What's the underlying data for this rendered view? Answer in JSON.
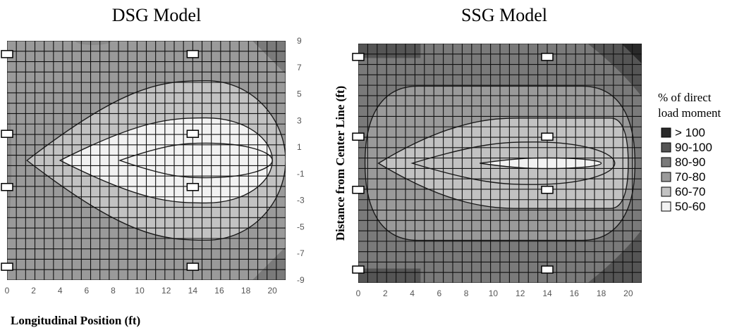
{
  "chart_data": {
    "legend_title": [
      "% of direct",
      "load moment"
    ],
    "legend": [
      {
        "label": "> 100",
        "color": "#2a2a2a"
      },
      {
        "label": "90-100",
        "color": "#555555"
      },
      {
        "label": "80-90",
        "color": "#7a7a7a"
      },
      {
        "label": "70-80",
        "color": "#9a9a9a"
      },
      {
        "label": "60-70",
        "color": "#c2c2c2"
      },
      {
        "label": "50-60",
        "color": "#f2f2f2"
      }
    ],
    "panels": [
      {
        "type": "heatmap",
        "title": "DSG Model",
        "xlabel": "Longitudinal Position (ft)",
        "ylabel": "",
        "xlim": [
          0,
          21
        ],
        "ylim": [
          -9,
          9
        ],
        "x_ticks": [
          "0",
          "2",
          "4",
          "6",
          "8",
          "10",
          "12",
          "14",
          "16",
          "18",
          "20"
        ],
        "y_ticks": [
          "9",
          "7",
          "5",
          "3",
          "1",
          "-1",
          "-3",
          "-5",
          "-7",
          "-9"
        ],
        "background_band": "70-80",
        "contours": [
          {
            "band": "60-70",
            "x_from": 1.5,
            "x_to": 21,
            "half_width": 6.0,
            "peak_x": 15
          },
          {
            "band": "50-60",
            "x_from": 4,
            "x_to": 20,
            "half_width": 3.2,
            "peak_x": 15
          },
          {
            "band": "50-60",
            "x_from": 8.5,
            "x_to": 20,
            "half_width": 1.3,
            "peak_x": 15
          }
        ],
        "corner_band": "80-90",
        "gages": [
          [
            0,
            8
          ],
          [
            0,
            2
          ],
          [
            0,
            -2
          ],
          [
            0,
            -8
          ],
          [
            14,
            8
          ],
          [
            14,
            2
          ],
          [
            14,
            -2
          ],
          [
            14,
            -8
          ]
        ]
      },
      {
        "type": "heatmap",
        "title": "SSG Model",
        "xlabel": "",
        "ylabel": "Distance from Center Line (ft)",
        "xlim": [
          0,
          21
        ],
        "ylim": [
          -9,
          9
        ],
        "x_ticks": [
          "0",
          "2",
          "4",
          "6",
          "8",
          "10",
          "12",
          "14",
          "16",
          "18",
          "20"
        ],
        "y_ticks": [],
        "background_band": "80-90",
        "contours": [
          {
            "band": "70-80",
            "x_from": 0.5,
            "x_to": 20.5,
            "half_width": 5.8,
            "peak_x": 12
          },
          {
            "band": "60-70",
            "x_from": 1.5,
            "x_to": 20,
            "half_width": 3.4,
            "peak_x": 12
          },
          {
            "band": "60-70",
            "x_from": 4,
            "x_to": 19,
            "half_width": 1.6,
            "peak_x": 13
          },
          {
            "band": "50-60",
            "x_from": 9,
            "x_to": 18,
            "half_width": 0.4,
            "peak_x": 14
          }
        ],
        "corner_band": "90-100",
        "gages": [
          [
            0,
            8
          ],
          [
            0,
            2
          ],
          [
            0,
            -2
          ],
          [
            0,
            -8
          ],
          [
            14,
            8
          ],
          [
            14,
            2
          ],
          [
            14,
            -2
          ],
          [
            14,
            -8
          ]
        ]
      }
    ]
  }
}
